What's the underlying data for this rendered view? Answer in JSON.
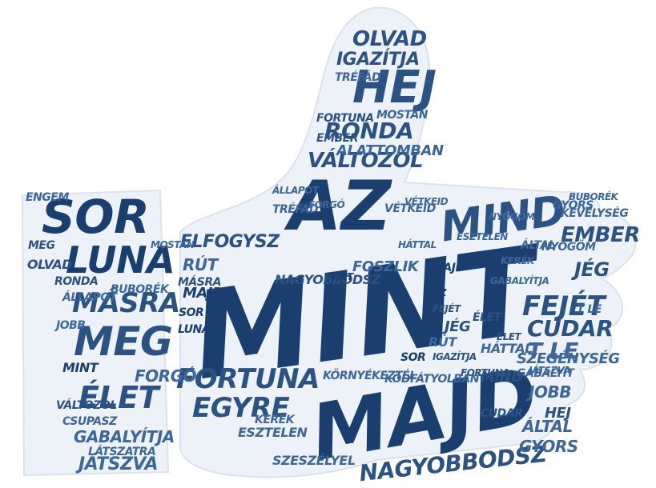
{
  "colors": {
    "background": "#ffffff",
    "shape": "#edf1f8",
    "shape_edge": "#dbe2ee",
    "words": [
      "#1a3f6e",
      "#2b5283",
      "#3d6699",
      "#5d7fac"
    ]
  },
  "words": [
    {
      "text": "MINT",
      "c": 0
    },
    {
      "text": "MAJD",
      "c": 0
    },
    {
      "text": "AZ",
      "c": 0
    },
    {
      "text": "SOR",
      "c": 0
    },
    {
      "text": "LUNA",
      "c": 0
    },
    {
      "text": "MEG",
      "c": 1
    },
    {
      "text": "ÉLET",
      "c": 1
    },
    {
      "text": "HEJ",
      "c": 1
    },
    {
      "text": "MIND",
      "c": 1
    },
    {
      "text": "MÁSRA",
      "c": 1
    },
    {
      "text": "FORTUNA",
      "c": 1
    },
    {
      "text": "EGYRE",
      "c": 1
    },
    {
      "text": "NAGYOBBODSZ",
      "c": 1
    },
    {
      "text": "FEJÉT",
      "c": 1
    },
    {
      "text": "CUDAR",
      "c": 1
    },
    {
      "text": "RONDA",
      "c": 1
    },
    {
      "text": "VÁLTOZOL",
      "c": 1
    },
    {
      "text": "OLVAD",
      "c": 1
    },
    {
      "text": "IGAZÍTJA",
      "c": 1
    },
    {
      "text": "ELFOGYSZ",
      "c": 1
    },
    {
      "text": "EMBER",
      "c": 1
    },
    {
      "text": "JÉG",
      "c": 1
    },
    {
      "text": "GABALYÍTJA",
      "c": 2
    },
    {
      "text": "JÁTSZVA",
      "c": 2
    },
    {
      "text": "FORGÓ",
      "c": 2
    },
    {
      "text": "T LE",
      "c": 2
    },
    {
      "text": "JOBB",
      "c": 2
    },
    {
      "text": "SZEGÉNYSÉG",
      "c": 2
    },
    {
      "text": "KEVÉLYSÉG",
      "c": 2
    },
    {
      "text": "BUBORÉK",
      "c": 2
    },
    {
      "text": "ÁLLAPOT",
      "c": 2
    },
    {
      "text": "CSUPASZ",
      "c": 2
    },
    {
      "text": "GYORS",
      "c": 2
    },
    {
      "text": "ÁLTAL",
      "c": 2
    },
    {
      "text": "FOSZLIK",
      "c": 2
    },
    {
      "text": "TRÉFÁD",
      "c": 2
    },
    {
      "text": "RÚT",
      "c": 2
    },
    {
      "text": "MOSTAN",
      "c": 2
    },
    {
      "text": "ALATTOMBAN",
      "c": 2
    },
    {
      "text": "ENGEM",
      "c": 2
    },
    {
      "text": "HÁTTAL",
      "c": 2
    },
    {
      "text": "NYÖGÖM",
      "c": 2
    },
    {
      "text": "ESZTELEN",
      "c": 2
    },
    {
      "text": "KERÉK",
      "c": 2
    },
    {
      "text": "VÉTKEID",
      "c": 2
    },
    {
      "text": "SZESZÉLYEL",
      "c": 2
    },
    {
      "text": "LÁTSZATRA",
      "c": 2
    },
    {
      "text": "KÖRNYÉKEZTÉL",
      "c": 2
    },
    {
      "text": "KÖDFÁTYOLBAN",
      "c": 2
    },
    {
      "text": "GABALYÍT",
      "c": 2
    }
  ]
}
